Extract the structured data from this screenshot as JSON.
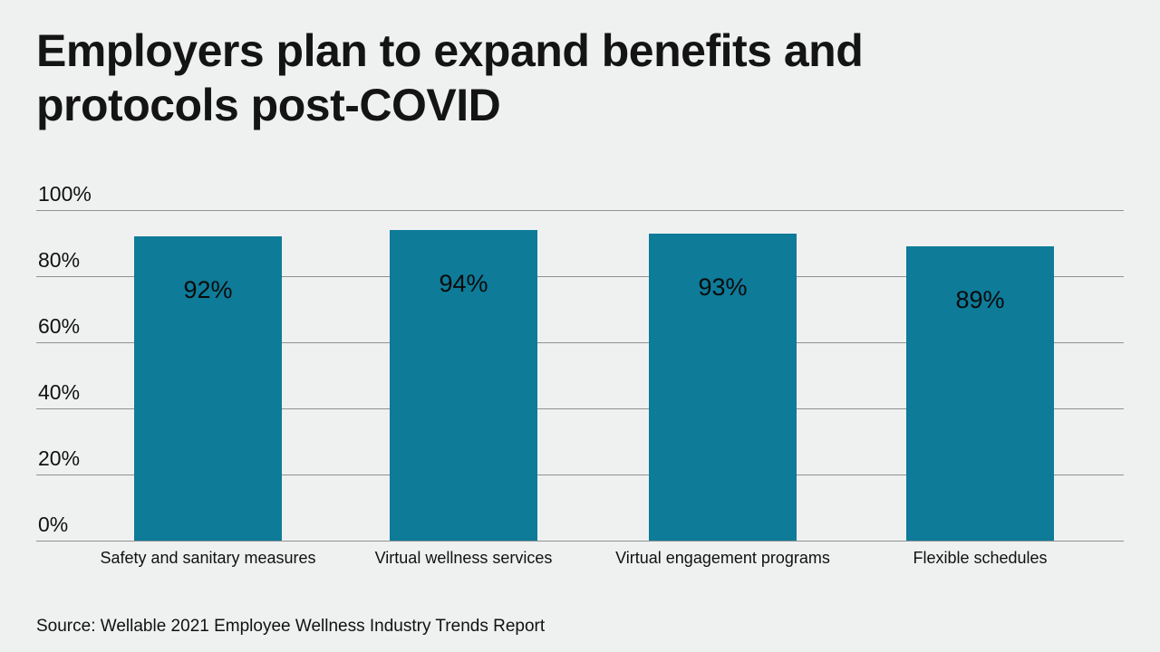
{
  "title": "Employers plan to expand benefits and protocols post-COVID",
  "source": "Source: Wellable 2021 Employee Wellness Industry Trends Report",
  "colors": {
    "background": "#eff1f1",
    "bar": "#0e7b99",
    "gridline": "#8f9292",
    "text": "#111111"
  },
  "chart_data": {
    "type": "bar",
    "title": "Employers plan to expand benefits and protocols post-COVID",
    "categories": [
      "Safety and sanitary measures",
      "Virtual wellness services",
      "Virtual engagement programs",
      "Flexible schedules"
    ],
    "values": [
      92,
      94,
      93,
      89
    ],
    "value_labels": [
      "92%",
      "94%",
      "93%",
      "89%"
    ],
    "xlabel": "",
    "ylabel": "",
    "ylim": [
      0,
      100
    ],
    "yticks": [
      100,
      80,
      60,
      40,
      20,
      0
    ],
    "ytick_labels": [
      "100%",
      "80%",
      "60%",
      "40%",
      "20%",
      "0%"
    ],
    "grid": true,
    "legend": false,
    "bar_color": "#0e7b99",
    "source": "Source: Wellable 2021 Employee Wellness Industry Trends Report"
  }
}
